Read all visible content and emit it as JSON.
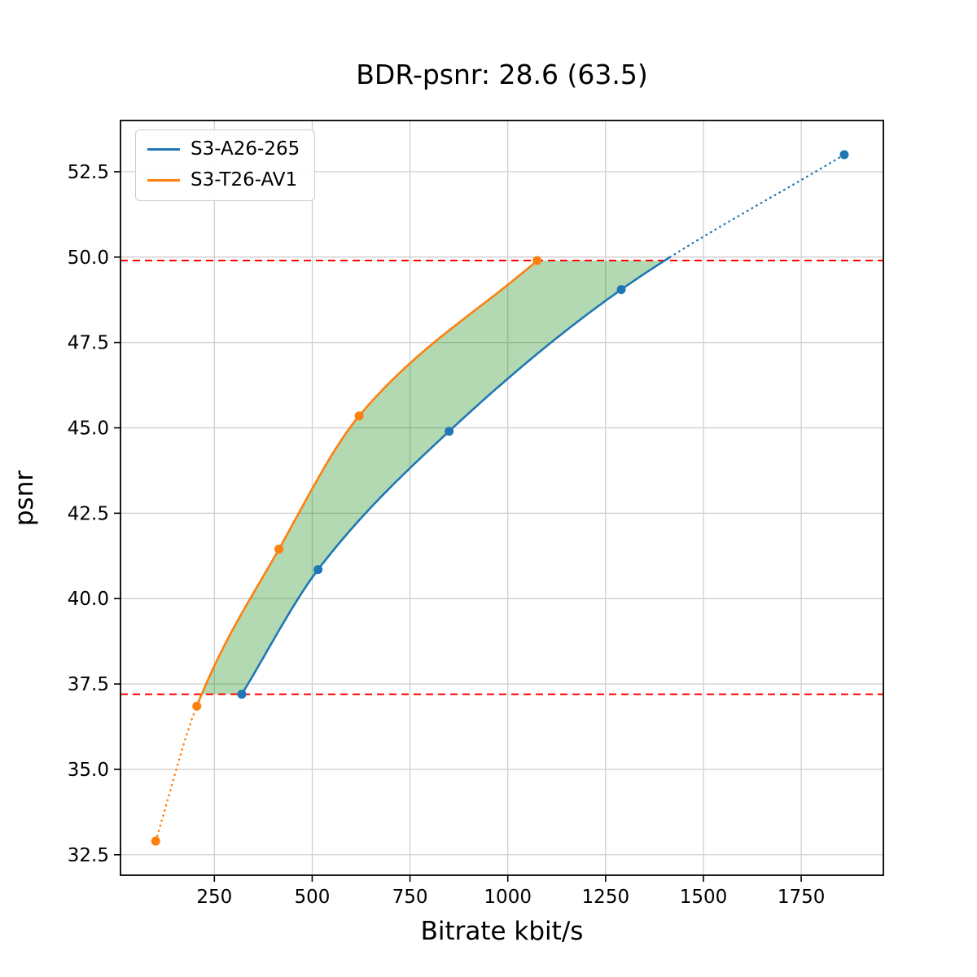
{
  "chart_data": {
    "type": "line",
    "title": "BDR-psnr: 28.6 (63.5)",
    "xlabel": "Bitrate kbit/s",
    "ylabel": "psnr",
    "xlim": [
      10,
      1960
    ],
    "ylim": [
      31.9,
      54.0
    ],
    "xticks": [
      250,
      500,
      750,
      1000,
      1250,
      1500,
      1750
    ],
    "yticks": [
      32.5,
      35.0,
      37.5,
      40.0,
      42.5,
      45.0,
      47.5,
      50.0,
      52.5
    ],
    "grid": true,
    "grid_color": "#cccccc",
    "legend_position": "upper-left",
    "series": [
      {
        "name": "S3-A26-265",
        "color": "#1f77b4",
        "points": [
          [
            320,
            37.2
          ],
          [
            515,
            40.85
          ],
          [
            850,
            44.9
          ],
          [
            1290,
            49.05
          ],
          [
            1860,
            53.0
          ]
        ],
        "solid_x_range": [
          320,
          1415
        ]
      },
      {
        "name": "S3-T26-AV1",
        "color": "#ff7f0e",
        "points": [
          [
            100,
            32.9
          ],
          [
            205,
            36.85
          ],
          [
            415,
            41.45
          ],
          [
            620,
            45.35
          ],
          [
            1075,
            49.9
          ]
        ],
        "solid_x_range": [
          205,
          1075
        ]
      }
    ],
    "hlines": {
      "values": [
        37.2,
        49.9
      ],
      "color": "red",
      "style": "dashed"
    },
    "fill_between": {
      "between": [
        "S3-T26-AV1",
        "S3-A26-265"
      ],
      "y_range": [
        37.2,
        49.9
      ],
      "color": "green",
      "alpha": 0.3
    }
  }
}
